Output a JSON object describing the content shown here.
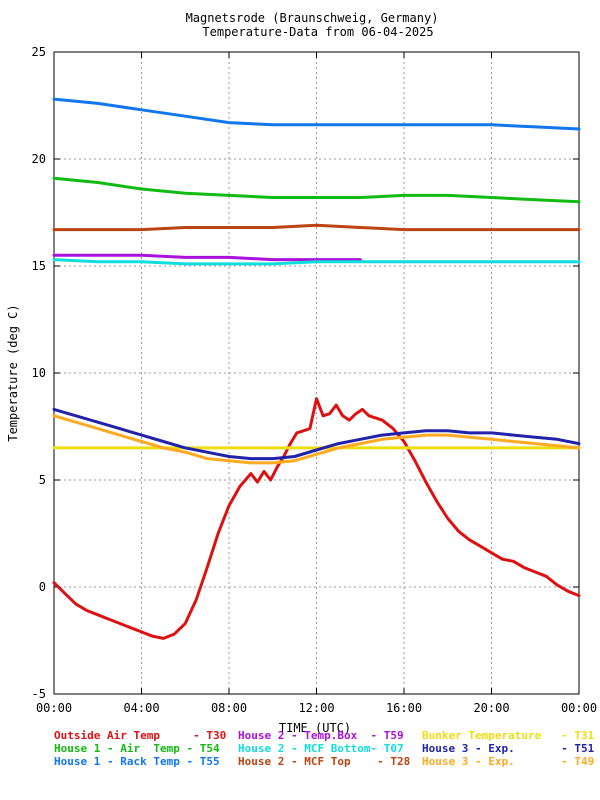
{
  "chart_data": {
    "type": "line",
    "title_line1": "Magnetsrode (Braunschweig, Germany)",
    "title_line2": "Temperature-Data from 06-04-2025",
    "xlabel": "TIME (UTC)",
    "ylabel": "Temperature (deg C)",
    "xlim": [
      0,
      24
    ],
    "ylim": [
      -5,
      25
    ],
    "x_ticks": [
      {
        "value": 0,
        "label": "00:00"
      },
      {
        "value": 4,
        "label": "04:00"
      },
      {
        "value": 8,
        "label": "08:00"
      },
      {
        "value": 12,
        "label": "12:00"
      },
      {
        "value": 16,
        "label": "16:00"
      },
      {
        "value": 20,
        "label": "20:00"
      },
      {
        "value": 24,
        "label": "00:00"
      }
    ],
    "y_ticks": [
      {
        "value": -5,
        "label": "-5"
      },
      {
        "value": 0,
        "label": "0"
      },
      {
        "value": 5,
        "label": "5"
      },
      {
        "value": 10,
        "label": "10"
      },
      {
        "value": 15,
        "label": "15"
      },
      {
        "value": 20,
        "label": "20"
      },
      {
        "value": 25,
        "label": "25"
      }
    ],
    "grid": true,
    "legend_position": "bottom",
    "series": [
      {
        "name": "Outside Air Temp     - T30",
        "color": "#dd1111",
        "x": [
          0,
          0.5,
          1,
          1.5,
          2,
          2.5,
          3,
          3.5,
          4,
          4.5,
          5,
          5.5,
          6,
          6.5,
          7,
          7.5,
          8,
          8.5,
          9,
          9.3,
          9.6,
          9.9,
          10.2,
          10.5,
          10.8,
          11.1,
          11.4,
          11.7,
          12,
          12.3,
          12.6,
          12.9,
          13.2,
          13.5,
          13.8,
          14.1,
          14.4,
          14.7,
          15,
          15.5,
          16,
          16.5,
          17,
          17.5,
          18,
          18.5,
          19,
          19.5,
          20,
          20.5,
          21,
          21.5,
          22,
          22.5,
          23,
          23.5,
          24
        ],
        "y": [
          0.2,
          -0.3,
          -0.8,
          -1.1,
          -1.3,
          -1.5,
          -1.7,
          -1.9,
          -2.1,
          -2.3,
          -2.4,
          -2.2,
          -1.7,
          -0.6,
          0.9,
          2.5,
          3.8,
          4.7,
          5.3,
          4.9,
          5.4,
          5.0,
          5.6,
          6.1,
          6.7,
          7.2,
          7.3,
          7.4,
          8.8,
          8.0,
          8.1,
          8.5,
          8.0,
          7.8,
          8.1,
          8.3,
          8.0,
          7.9,
          7.8,
          7.4,
          6.8,
          5.9,
          4.9,
          4.0,
          3.2,
          2.6,
          2.2,
          1.9,
          1.6,
          1.3,
          1.2,
          0.9,
          0.7,
          0.5,
          0.1,
          -0.2,
          -0.4
        ]
      },
      {
        "name": "House 1 - Air  Temp - T54",
        "color": "#11bb11",
        "x": [
          0,
          2,
          4,
          6,
          8,
          10,
          12,
          14,
          16,
          18,
          20,
          22,
          24
        ],
        "y": [
          19.1,
          18.9,
          18.6,
          18.4,
          18.3,
          18.2,
          18.2,
          18.2,
          18.3,
          18.3,
          18.2,
          18.1,
          18.0
        ]
      },
      {
        "name": "House 1 - Rack Temp - T55",
        "color": "#1177ee",
        "x": [
          0,
          2,
          4,
          6,
          8,
          10,
          12,
          14,
          16,
          18,
          20,
          22,
          24
        ],
        "y": [
          22.8,
          22.6,
          22.3,
          22.0,
          21.7,
          21.6,
          21.6,
          21.6,
          21.6,
          21.6,
          21.6,
          21.5,
          21.4
        ]
      },
      {
        "name": "House 2 - Temp.Box  - T59",
        "color": "#aa11dd",
        "x": [
          0,
          2,
          4,
          6,
          8,
          10,
          12,
          14
        ],
        "y": [
          15.5,
          15.5,
          15.5,
          15.4,
          15.4,
          15.3,
          15.3,
          15.3
        ]
      },
      {
        "name": "House 2 - MCF Bottom- T07",
        "color": "#11dddd",
        "x": [
          0,
          2,
          4,
          6,
          8,
          10,
          12,
          14,
          16,
          18,
          20,
          22,
          24
        ],
        "y": [
          15.3,
          15.2,
          15.2,
          15.1,
          15.1,
          15.1,
          15.2,
          15.2,
          15.2,
          15.2,
          15.2,
          15.2,
          15.2
        ]
      },
      {
        "name": "House 2 - MCF Top    - T28",
        "color": "#bb4411",
        "x": [
          0,
          2,
          4,
          6,
          8,
          10,
          12,
          14,
          16,
          18,
          20,
          22,
          24
        ],
        "y": [
          16.7,
          16.7,
          16.7,
          16.8,
          16.8,
          16.8,
          16.9,
          16.8,
          16.7,
          16.7,
          16.7,
          16.7,
          16.7
        ]
      },
      {
        "name": "Bunker Temperature   - T31",
        "color": "#eedd11",
        "x": [
          0,
          24
        ],
        "y": [
          6.5,
          6.5
        ]
      },
      {
        "name": "House 3 - Exp.       - T51",
        "color": "#2222aa",
        "x": [
          0,
          1,
          2,
          3,
          4,
          5,
          6,
          7,
          8,
          9,
          10,
          11,
          12,
          13,
          14,
          15,
          16,
          17,
          18,
          19,
          20,
          21,
          22,
          23,
          24
        ],
        "y": [
          8.3,
          8.0,
          7.7,
          7.4,
          7.1,
          6.8,
          6.5,
          6.3,
          6.1,
          6.0,
          6.0,
          6.1,
          6.4,
          6.7,
          6.9,
          7.1,
          7.2,
          7.3,
          7.3,
          7.2,
          7.2,
          7.1,
          7.0,
          6.9,
          6.7
        ]
      },
      {
        "name": "House 3 - Exp.       - T49",
        "color": "#ffaa22",
        "x": [
          0,
          1,
          2,
          3,
          4,
          5,
          6,
          7,
          8,
          9,
          10,
          11,
          12,
          13,
          14,
          15,
          16,
          17,
          18,
          19,
          20,
          21,
          22,
          23,
          24
        ],
        "y": [
          8.0,
          7.7,
          7.4,
          7.1,
          6.8,
          6.5,
          6.3,
          6.0,
          5.9,
          5.8,
          5.8,
          5.9,
          6.2,
          6.5,
          6.7,
          6.9,
          7.0,
          7.1,
          7.1,
          7.0,
          6.9,
          6.8,
          6.7,
          6.6,
          6.5
        ]
      }
    ]
  }
}
